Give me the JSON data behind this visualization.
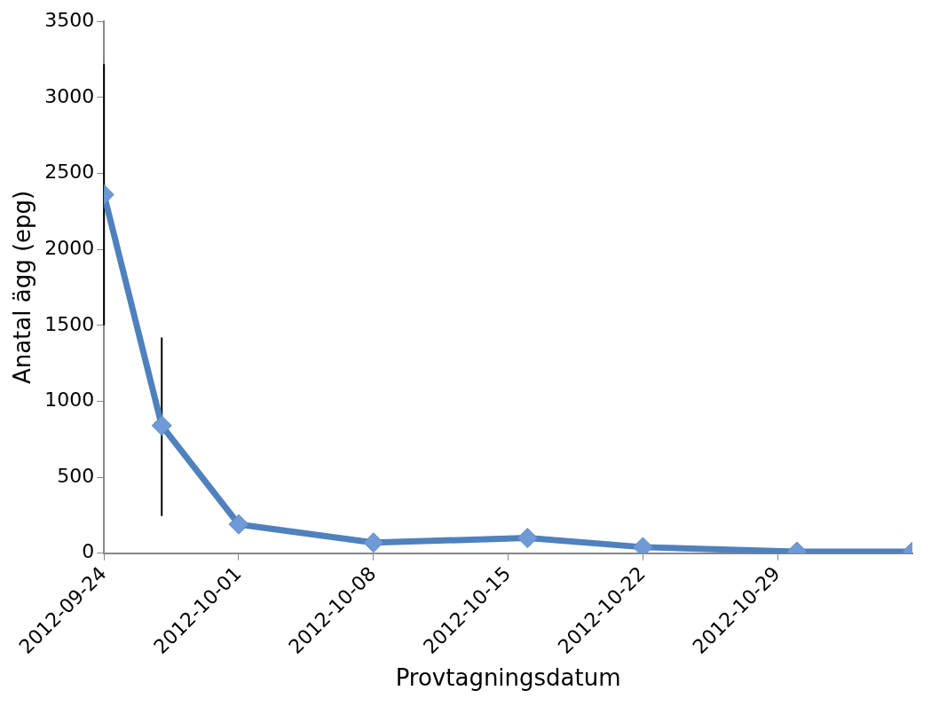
{
  "chart_data": {
    "type": "line",
    "xlabel": "Provtagningsdatum",
    "ylabel": "Anatal ägg (epg)",
    "x": [
      "2012-09-24",
      "2012-09-27",
      "2012-10-01",
      "2012-10-08",
      "2012-10-16",
      "2012-10-22",
      "2012-10-30",
      "2012-11-05"
    ],
    "series": [
      {
        "color": "#4f81bd",
        "values": [
          2360,
          840,
          190,
          70,
          100,
          40,
          10,
          10
        ],
        "errors": [
          [
            1500,
            3220
          ],
          [
            245,
            1420
          ],
          null,
          null,
          null,
          null,
          null,
          null
        ]
      }
    ],
    "xlim": [
      "2012-09-24",
      "2012-11-05"
    ],
    "xticks": [
      "2012-09-24",
      "2012-10-01",
      "2012-10-08",
      "2012-10-15",
      "2012-10-22",
      "2012-10-29"
    ],
    "ylim": [
      0,
      3500
    ],
    "yticks": [
      0,
      500,
      1000,
      1500,
      2000,
      2500,
      3000,
      3500
    ],
    "grid": false,
    "legend": false,
    "marker": "diamond",
    "line_style": "solid"
  }
}
